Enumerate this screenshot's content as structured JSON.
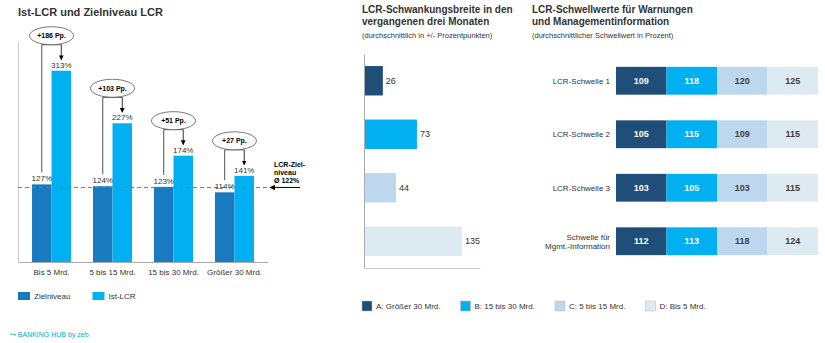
{
  "chart_data": [
    {
      "type": "bar",
      "title": "Ist-LCR und Zielniveau LCR",
      "categories": [
        "Bis 5 Mrd.",
        "5 bis 15 Mrd.",
        "15 bis 30 Mrd.",
        "Größer 30 Mrd."
      ],
      "series": [
        {
          "name": "Zielniveau",
          "color": "#1a7abf",
          "values": [
            127,
            124,
            123,
            114
          ],
          "value_labels": [
            "127%",
            "124%",
            "123%",
            "114%"
          ]
        },
        {
          "name": "Ist-LCR",
          "color": "#00b0f0",
          "values": [
            313,
            227,
            174,
            141
          ],
          "value_labels": [
            "313%",
            "227%",
            "174%",
            "141%"
          ]
        }
      ],
      "ylim": [
        0,
        360
      ],
      "tick_labels": "x",
      "data_labels": true,
      "legend": "bottom",
      "reference_line": {
        "value": 122,
        "label": "LCR-Ziel-\nniveau\nØ 122%"
      },
      "annotations": [
        "+186 Pp.",
        "+103 Pp.",
        "+51 Pp.",
        "+27 Pp."
      ],
      "source": "↪ BANKING HUB by zeb"
    },
    {
      "type": "bar",
      "orientation": "horizontal",
      "title": "LCR-Schwankungsbreite in den\nvergangenen drei Monaten",
      "subtitle": "(durchschnittlich in +/- Prozentpunkten)",
      "categories": [
        "A: Größer 30 Mrd.",
        "B: 15 bis 30 Mrd.",
        "C: 5 bis 15 Mrd.",
        "D: Bis 5 Mrd."
      ],
      "values": [
        26,
        73,
        44,
        135
      ],
      "colors": [
        "#1f4e79",
        "#00b0f0",
        "#bdd7ee",
        "#deeaf1"
      ],
      "xlim": [
        0,
        160
      ],
      "tick_labels": false,
      "data_labels": true,
      "legend": "bottom"
    },
    {
      "type": "heatmap",
      "title": "LCR-Schwellwerte für Warnungen\nund Managementinformation",
      "subtitle": "(durchschnittlicher Schwellwert in Prozent)",
      "categories": [
        "LCR-Schwelle 1",
        "LCR-Schwelle 2",
        "LCR-Schwelle 3",
        "Schwelle für\nMgmt.-Information"
      ],
      "series": [
        {
          "color": "#1f4e79",
          "values": [
            109,
            105,
            103,
            112
          ]
        },
        {
          "color": "#00b0f0",
          "values": [
            118,
            115,
            105,
            113
          ]
        },
        {
          "color": "#bdd7ee",
          "values": [
            120,
            109,
            103,
            118
          ]
        },
        {
          "color": "#deeaf1",
          "values": [
            125,
            115,
            115,
            124
          ]
        }
      ],
      "data_labels": true
    }
  ]
}
